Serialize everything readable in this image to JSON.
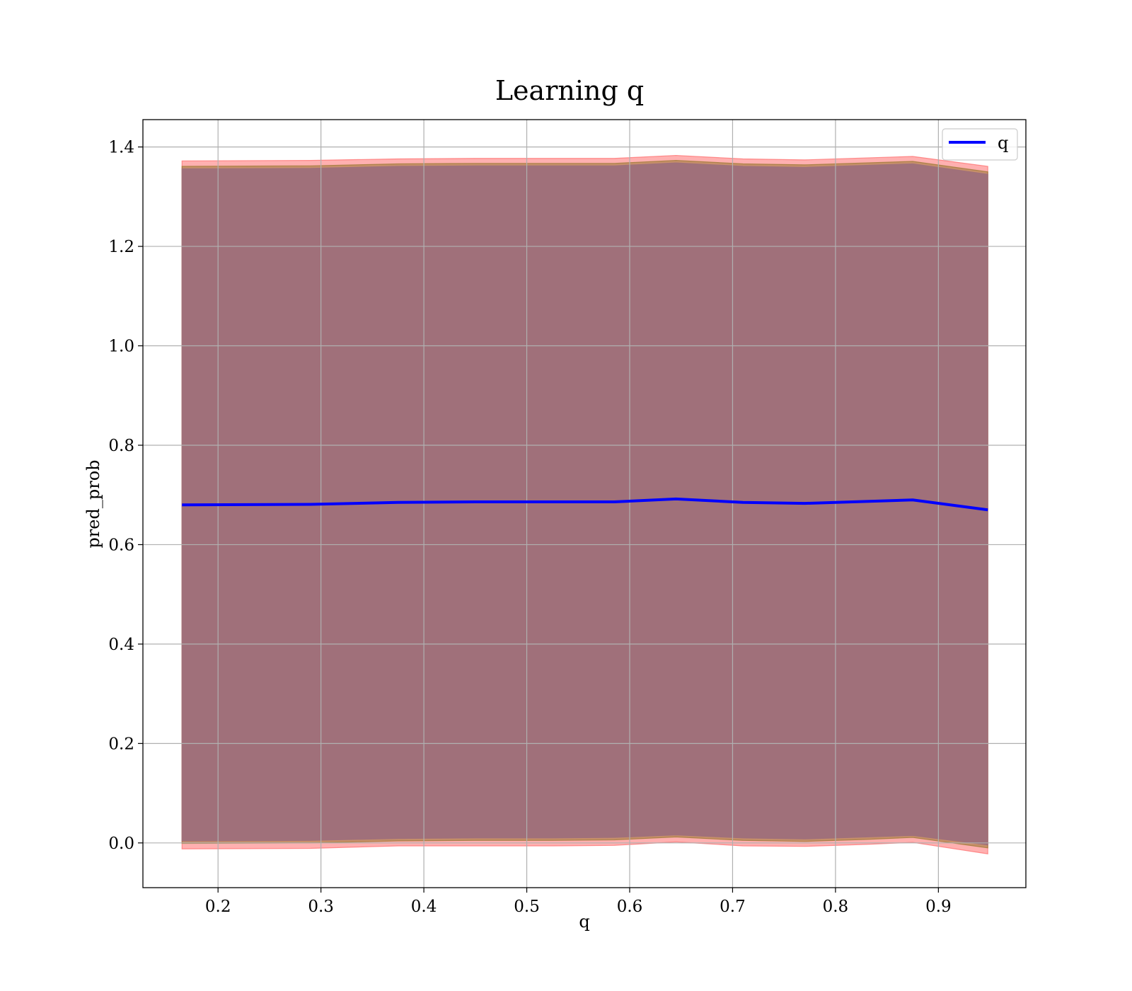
{
  "chart_data": {
    "type": "area",
    "title": "Learning q",
    "xlabel": "q",
    "ylabel": "pred_prob",
    "xlim": [
      0.127,
      0.985
    ],
    "ylim": [
      -0.09,
      1.455
    ],
    "xticks": [
      0.2,
      0.3,
      0.4,
      0.5,
      0.6,
      0.7,
      0.8,
      0.9
    ],
    "xtick_labels": [
      "0.2",
      "0.3",
      "0.4",
      "0.5",
      "0.6",
      "0.7",
      "0.8",
      "0.9"
    ],
    "yticks": [
      0.0,
      0.2,
      0.4,
      0.6,
      0.8,
      1.0,
      1.2,
      1.4
    ],
    "ytick_labels": [
      "0.0",
      "0.2",
      "0.4",
      "0.6",
      "0.8",
      "1.0",
      "1.2",
      "1.4"
    ],
    "grid": true,
    "legend": {
      "position": "top-right",
      "entries": [
        "q"
      ]
    },
    "x": [
      0.165,
      0.29,
      0.375,
      0.45,
      0.525,
      0.585,
      0.645,
      0.71,
      0.77,
      0.83,
      0.875,
      0.948
    ],
    "series": [
      {
        "name": "q",
        "kind": "line",
        "color": "#0000ff",
        "values": [
          0.68,
          0.681,
          0.685,
          0.686,
          0.686,
          0.686,
          0.692,
          0.685,
          0.683,
          0.687,
          0.69,
          0.67
        ]
      }
    ],
    "bands": [
      {
        "kind": "band",
        "color": "#ff6f6f",
        "opacity": 0.55,
        "lower": [
          -0.012,
          -0.011,
          -0.006,
          -0.006,
          -0.006,
          -0.005,
          0.002,
          -0.006,
          -0.007,
          -0.003,
          0.001,
          -0.022
        ],
        "upper": [
          1.372,
          1.373,
          1.376,
          1.377,
          1.377,
          1.377,
          1.383,
          1.376,
          1.374,
          1.378,
          1.381,
          1.361
        ]
      },
      {
        "kind": "band",
        "color": "#a07a3a",
        "opacity": 0.6,
        "lower": [
          -0.001,
          0.0,
          0.004,
          0.005,
          0.005,
          0.006,
          0.012,
          0.005,
          0.003,
          0.007,
          0.011,
          -0.01
        ],
        "upper": [
          1.361,
          1.362,
          1.366,
          1.367,
          1.367,
          1.367,
          1.373,
          1.366,
          1.364,
          1.368,
          1.371,
          1.35
        ]
      },
      {
        "kind": "band",
        "color": "#a0707a",
        "opacity": 1.0,
        "lower": [
          0.004,
          0.005,
          0.009,
          0.01,
          0.01,
          0.011,
          0.016,
          0.01,
          0.008,
          0.012,
          0.015,
          -0.004
        ],
        "upper": [
          1.356,
          1.357,
          1.361,
          1.362,
          1.362,
          1.362,
          1.368,
          1.361,
          1.359,
          1.363,
          1.366,
          1.345
        ]
      }
    ]
  }
}
